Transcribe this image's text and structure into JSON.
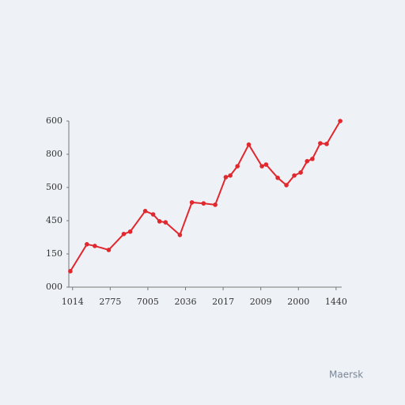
{
  "chart_data": {
    "type": "line",
    "x": [
      -0.06,
      0.38,
      0.59,
      0.96,
      1.36,
      1.53,
      1.93,
      2.14,
      2.31,
      2.47,
      2.85,
      3.17,
      3.48,
      3.79,
      4.07,
      4.19,
      4.38,
      4.68,
      5.03,
      5.14,
      5.45,
      5.68,
      5.89,
      6.06,
      6.23,
      6.37,
      6.58,
      6.75,
      7.11
    ],
    "series": [
      {
        "color": "#e0282e",
        "values": [
          0.48,
          1.29,
          1.24,
          1.12,
          1.6,
          1.67,
          2.29,
          2.19,
          1.98,
          1.95,
          1.57,
          2.55,
          2.52,
          2.48,
          3.31,
          3.36,
          3.64,
          4.29,
          3.64,
          3.69,
          3.29,
          3.07,
          3.36,
          3.45,
          3.79,
          3.86,
          4.33,
          4.31,
          5.0
        ]
      }
    ],
    "xlim": [
      -0.1,
      7.15
    ],
    "xticks": [
      {
        "value": 0,
        "label": "1014"
      },
      {
        "value": 1,
        "label": "2775"
      },
      {
        "value": 2,
        "label": "7005"
      },
      {
        "value": 3,
        "label": "2036"
      },
      {
        "value": 4,
        "label": "2017"
      },
      {
        "value": 5,
        "label": "2009"
      },
      {
        "value": 6,
        "label": "2000"
      },
      {
        "value": 7,
        "label": "1440"
      }
    ],
    "ylim": [
      0,
      5
    ],
    "yticks": [
      {
        "value": 0,
        "label": "000"
      },
      {
        "value": 1,
        "label": "150"
      },
      {
        "value": 2,
        "label": "450"
      },
      {
        "value": 3,
        "label": "500"
      },
      {
        "value": 4,
        "label": "800"
      },
      {
        "value": 5,
        "label": "600"
      }
    ],
    "grid": false,
    "watermark": "Maersk"
  }
}
